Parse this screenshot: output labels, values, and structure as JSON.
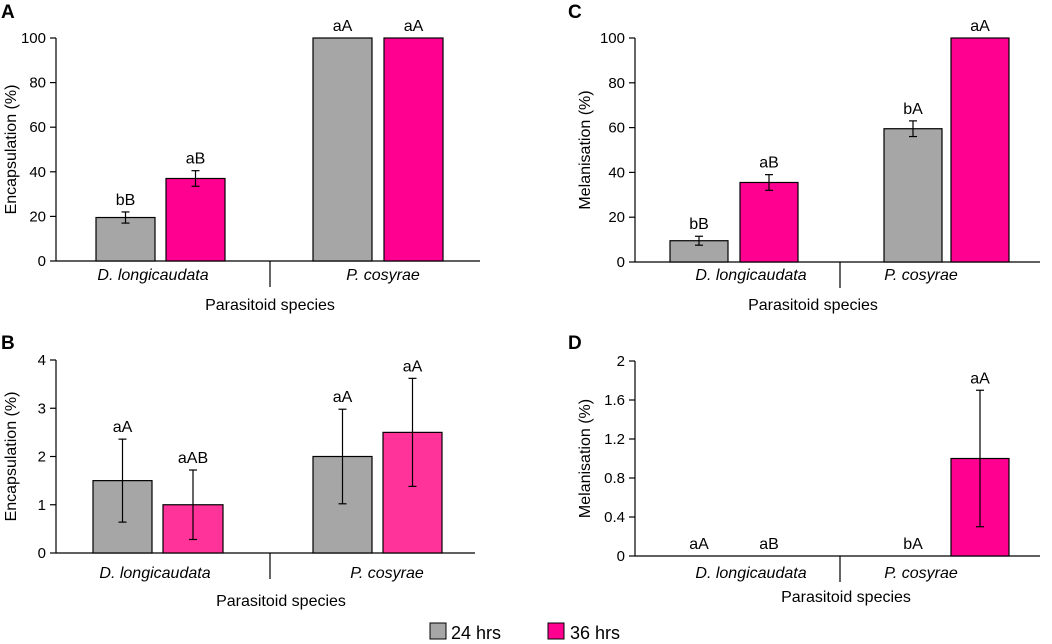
{
  "colors": {
    "s24": "#a6a6a6",
    "s36a": "#ff0090",
    "s36b": "#ff3399",
    "axis": "#000000"
  },
  "legend": [
    {
      "name": "24 hrs",
      "color": "#a6a6a6"
    },
    {
      "name": "36 hrs",
      "color": "#ff0090"
    }
  ],
  "chart_data": [
    {
      "panel": "A",
      "type": "bar",
      "categories": [
        "D. longicaudata",
        "P. cosyrae"
      ],
      "xlabel": "Parasitoid species",
      "ylabel": "Encapsulation (%)",
      "ylim": [
        0,
        100
      ],
      "yticks": [
        "0",
        "20",
        "40",
        "60",
        "80",
        "100"
      ],
      "series": [
        {
          "name": "24 hrs",
          "values": [
            19.5,
            100
          ],
          "errors": [
            2.5,
            0
          ],
          "letters": [
            "bB",
            "aA"
          ]
        },
        {
          "name": "36 hrs",
          "values": [
            37,
            100
          ],
          "errors": [
            3.5,
            0
          ],
          "letters": [
            "aB",
            "aA"
          ]
        }
      ]
    },
    {
      "panel": "B",
      "type": "bar",
      "categories": [
        "D. longicaudata",
        "P. cosyrae"
      ],
      "xlabel": "Parasitoid species",
      "ylabel": "Encapsulation (%)",
      "ylim": [
        0,
        4
      ],
      "yticks": [
        "0",
        "1",
        "2",
        "3",
        "4"
      ],
      "series": [
        {
          "name": "24 hrs",
          "values": [
            1.5,
            2.0
          ],
          "errors": [
            0.86,
            0.98
          ],
          "letters": [
            "aA",
            "aA"
          ]
        },
        {
          "name": "36 hrs",
          "values": [
            1.0,
            2.5
          ],
          "errors": [
            0.72,
            1.12
          ],
          "letters": [
            "aAB",
            "aA"
          ]
        }
      ]
    },
    {
      "panel": "C",
      "type": "bar",
      "categories": [
        "D. longicaudata",
        "P. cosyrae"
      ],
      "xlabel": "Parasitoid species",
      "ylabel": "Melanisation (%)",
      "ylim": [
        0,
        100
      ],
      "yticks": [
        "0",
        "20",
        "40",
        "60",
        "80",
        "100"
      ],
      "series": [
        {
          "name": "24 hrs",
          "values": [
            9.5,
            59.5
          ],
          "errors": [
            2,
            3.5
          ],
          "letters": [
            "bB",
            "bA"
          ]
        },
        {
          "name": "36 hrs",
          "values": [
            35.5,
            100
          ],
          "errors": [
            3.5,
            0
          ],
          "letters": [
            "aB",
            "aA"
          ]
        }
      ]
    },
    {
      "panel": "D",
      "type": "bar",
      "categories": [
        "D. longicaudata",
        "P. cosyrae"
      ],
      "xlabel": "Parasitoid species",
      "ylabel": "Melanisation (%)",
      "ylim": [
        0,
        2
      ],
      "yticks": [
        "0",
        "0.4",
        "0.8",
        "1.2",
        "1.6",
        "2"
      ],
      "series": [
        {
          "name": "24 hrs",
          "values": [
            0,
            0
          ],
          "errors": [
            0,
            0
          ],
          "letters": [
            "aA",
            "bA"
          ]
        },
        {
          "name": "36 hrs",
          "values": [
            0,
            1.0
          ],
          "errors": [
            0,
            0.7
          ],
          "letters": [
            "aB",
            "aA"
          ]
        }
      ]
    }
  ]
}
